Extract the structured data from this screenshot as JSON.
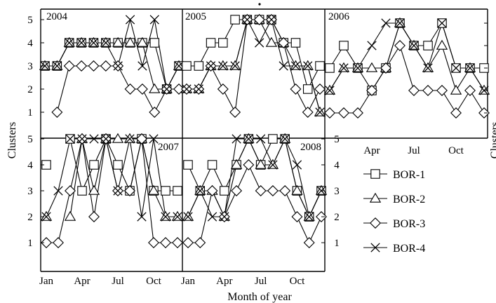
{
  "figure": {
    "ylabel_left": "Clusters",
    "ylabel_right": "Clusters",
    "xlabel": "Month of year",
    "x_tick_labels": [
      "Jan",
      "Apr",
      "Jul",
      "Oct"
    ]
  },
  "legend": {
    "entries": [
      {
        "label": "BOR-1",
        "marker": "square"
      },
      {
        "label": "BOR-2",
        "marker": "triangle"
      },
      {
        "label": "BOR-3",
        "marker": "diamond"
      },
      {
        "label": "BOR-4",
        "marker": "x"
      }
    ]
  },
  "chart_data": [
    {
      "type": "line",
      "title": "2004",
      "x": [
        1,
        2,
        3,
        4,
        5,
        6,
        7,
        8,
        9,
        10,
        11,
        12
      ],
      "ylim": [
        0,
        5.4
      ],
      "yticks": [
        1,
        2,
        3,
        4,
        5
      ],
      "series": [
        {
          "name": "BOR-1",
          "values": [
            3,
            3,
            4,
            4,
            4,
            4,
            4,
            4,
            4,
            4,
            2,
            3
          ]
        },
        {
          "name": "BOR-2",
          "values": [
            3,
            3,
            4,
            4,
            4,
            4,
            4,
            4,
            4,
            2,
            2,
            3
          ]
        },
        {
          "name": "BOR-3",
          "values": [
            null,
            1,
            3,
            3,
            3,
            3,
            3,
            2,
            2,
            1,
            2,
            2
          ]
        },
        {
          "name": "BOR-4",
          "values": [
            3,
            3,
            4,
            4,
            4,
            4,
            3,
            5,
            3,
            5,
            2,
            3
          ]
        }
      ]
    },
    {
      "type": "line",
      "title": "2005",
      "x": [
        1,
        2,
        3,
        4,
        5,
        6,
        7,
        8,
        9,
        10,
        11,
        12
      ],
      "ylim": [
        0,
        5.4
      ],
      "series": [
        {
          "name": "BOR-1",
          "values": [
            3,
            3,
            4,
            4,
            5,
            5,
            5,
            5,
            4,
            4,
            2,
            3
          ]
        },
        {
          "name": "BOR-2",
          "values": [
            2,
            2,
            3,
            3,
            3,
            5,
            5,
            4,
            4,
            3,
            3,
            1
          ]
        },
        {
          "name": "BOR-3",
          "values": [
            2,
            2,
            3,
            2,
            1,
            5,
            5,
            5,
            4,
            2,
            1,
            2
          ]
        },
        {
          "name": "BOR-4",
          "values": [
            2,
            2,
            3,
            3,
            3,
            5,
            4,
            5,
            3,
            3,
            3,
            1
          ]
        }
      ]
    },
    {
      "type": "line",
      "title": "2006",
      "x": [
        1,
        2,
        3,
        4,
        5,
        6,
        7,
        8,
        9,
        10,
        11,
        12
      ],
      "ylim": [
        0,
        5.4
      ],
      "yticks": [
        1,
        2,
        3,
        4,
        5
      ],
      "series": [
        {
          "name": "BOR-1",
          "values": [
            3,
            4,
            3,
            2,
            3,
            5,
            4,
            4,
            5,
            3,
            3,
            3
          ]
        },
        {
          "name": "BOR-2",
          "values": [
            2,
            3,
            3,
            3,
            3,
            5,
            4,
            3,
            4,
            2,
            3,
            2
          ]
        },
        {
          "name": "BOR-3",
          "values": [
            1,
            1,
            1,
            2,
            3,
            4,
            2,
            2,
            2,
            1,
            2,
            1
          ]
        },
        {
          "name": "BOR-4",
          "values": [
            2,
            3,
            3,
            4,
            5,
            5,
            4,
            3,
            5,
            3,
            3,
            2
          ]
        }
      ]
    },
    {
      "type": "line",
      "title": "2007",
      "x": [
        1,
        2,
        3,
        4,
        5,
        6,
        7,
        8,
        9,
        10,
        11,
        12
      ],
      "ylim": [
        0,
        5.4
      ],
      "yticks": [
        1,
        2,
        3,
        4,
        5
      ],
      "series": [
        {
          "name": "BOR-1",
          "values": [
            4,
            null,
            5,
            3,
            4,
            5,
            4,
            3,
            5,
            3,
            3,
            3
          ]
        },
        {
          "name": "BOR-2",
          "values": [
            2,
            null,
            2,
            5,
            3,
            5,
            5,
            5,
            5,
            3,
            2,
            2
          ]
        },
        {
          "name": "BOR-3",
          "values": [
            1,
            1,
            3,
            5,
            2,
            5,
            3,
            3,
            5,
            1,
            1,
            1
          ]
        },
        {
          "name": "BOR-4",
          "values": [
            2,
            3,
            5,
            5,
            5,
            5,
            3,
            5,
            2,
            5,
            2,
            2
          ]
        }
      ]
    },
    {
      "type": "line",
      "title": "2008",
      "x": [
        1,
        2,
        3,
        4,
        5,
        6,
        7,
        8,
        9,
        10,
        11,
        12
      ],
      "ylim": [
        0,
        5.4
      ],
      "yticks": [
        1,
        2,
        3,
        4,
        5
      ],
      "series": [
        {
          "name": "BOR-1",
          "values": [
            4,
            3,
            4,
            3,
            4,
            5,
            4,
            5,
            5,
            3,
            2,
            3
          ]
        },
        {
          "name": "BOR-2",
          "values": [
            2,
            3,
            3,
            2,
            4,
            5,
            4,
            4,
            5,
            3,
            2,
            3
          ]
        },
        {
          "name": "BOR-3",
          "values": [
            1,
            1,
            3,
            2,
            3,
            4,
            3,
            3,
            3,
            2,
            1,
            2
          ]
        },
        {
          "name": "BOR-4",
          "values": [
            2,
            3,
            2,
            2,
            5,
            5,
            5,
            4,
            5,
            4,
            2,
            3
          ]
        }
      ]
    }
  ]
}
